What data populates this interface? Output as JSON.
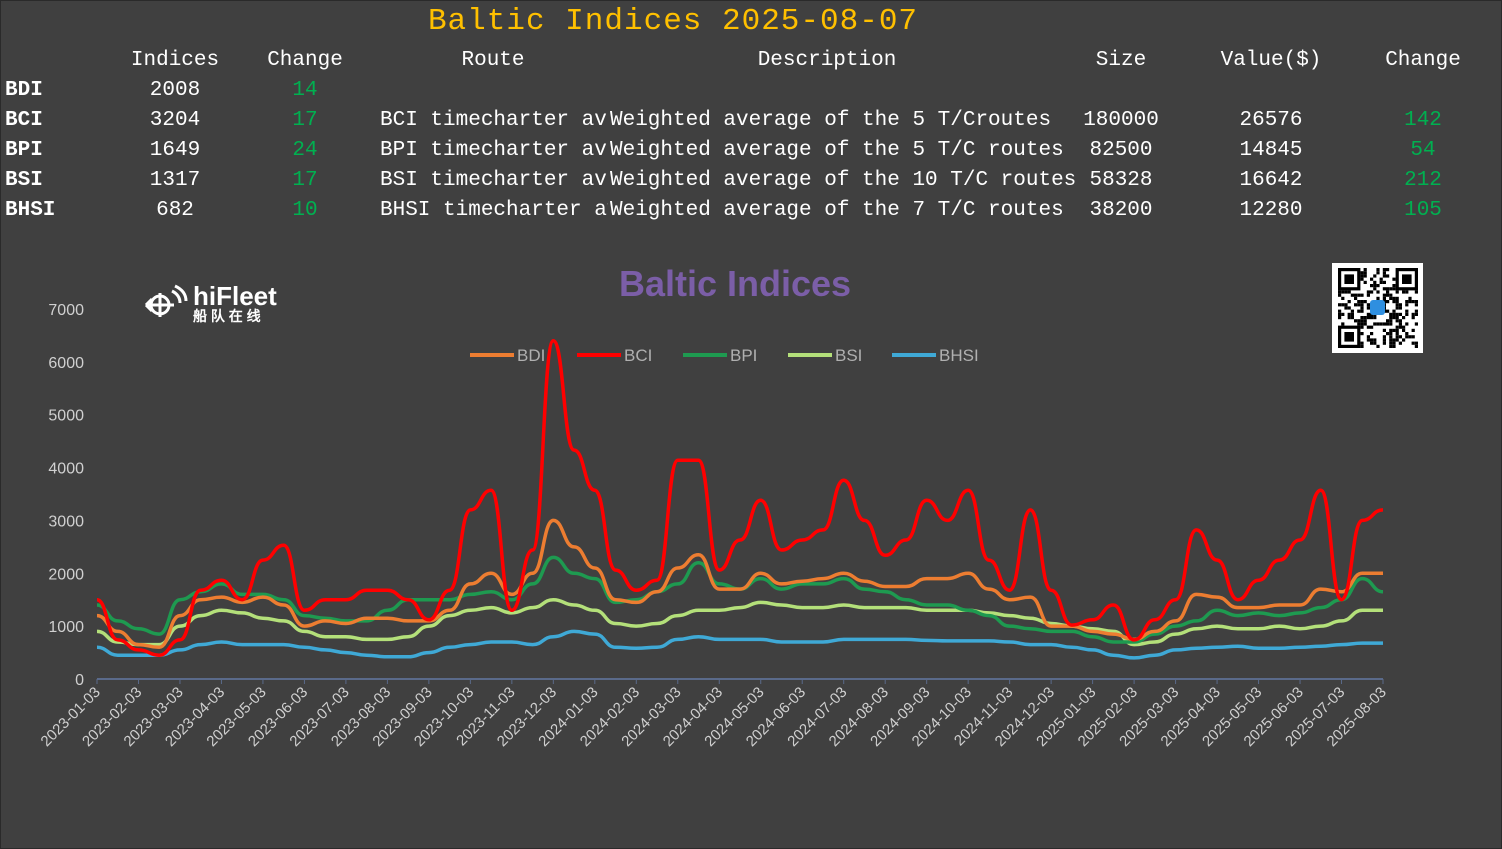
{
  "header": {
    "title": "Baltic Indices 2025-08-07"
  },
  "table": {
    "columns": [
      "Indices",
      "Change",
      "Route",
      "Description",
      "Size",
      "Value($)",
      "Change"
    ],
    "rows": [
      {
        "name": "BDI",
        "index": "2008",
        "change": "14",
        "route": "",
        "description": "",
        "size": "",
        "value": "",
        "value_change": ""
      },
      {
        "name": "BCI",
        "index": "3204",
        "change": "17",
        "route": "BCI timecharter average",
        "description": "Weighted average of the 5 T/Croutes",
        "size": "180000",
        "value": "26576",
        "value_change": "142"
      },
      {
        "name": "BPI",
        "index": "1649",
        "change": "24",
        "route": "BPI timecharter average",
        "description": "Weighted average of the 5 T/C routes",
        "size": "82500",
        "value": "14845",
        "value_change": "54"
      },
      {
        "name": "BSI",
        "index": "1317",
        "change": "17",
        "route": "BSI timecharter average",
        "description": "Weighted average of the 10 T/C routes",
        "size": "58328",
        "value": "16642",
        "value_change": "212"
      },
      {
        "name": "BHSI",
        "index": "682",
        "change": "10",
        "route": "BHSI timecharter average",
        "description": "Weighted average of the 7 T/C routes",
        "size": "38200",
        "value": "12280",
        "value_change": "105"
      }
    ]
  },
  "logo": {
    "brand": "hiFleet",
    "subtitle": "船 队 在 线"
  },
  "colors": {
    "background": "#404040",
    "title": "#ffc000",
    "positive": "#00b050",
    "chart_title": "#7b5ea7"
  },
  "chart_data": {
    "type": "line",
    "title": "Baltic Indices",
    "xlabel": "",
    "ylabel": "",
    "ylim": [
      0,
      7000
    ],
    "yticks": [
      0,
      1000,
      2000,
      3000,
      4000,
      5000,
      6000,
      7000
    ],
    "xticks": [
      "2023-01-03",
      "2023-02-03",
      "2023-03-03",
      "2023-04-03",
      "2023-05-03",
      "2023-06-03",
      "2023-07-03",
      "2023-08-03",
      "2023-09-03",
      "2023-10-03",
      "2023-11-03",
      "2023-12-03",
      "2024-01-03",
      "2024-02-03",
      "2024-03-03",
      "2024-04-03",
      "2024-05-03",
      "2024-06-03",
      "2024-07-03",
      "2024-08-03",
      "2024-09-03",
      "2024-10-03",
      "2024-11-03",
      "2024-12-03",
      "2025-01-03",
      "2025-02-03",
      "2025-03-03",
      "2025-04-03",
      "2025-05-03",
      "2025-06-03",
      "2025-07-03",
      "2025-08-03"
    ],
    "x_note": "values sampled twice per month from 2023-01-03 to 2025-08-03",
    "legend_position": "top-center",
    "grid": false,
    "series": [
      {
        "name": "BDI",
        "color": "#ed7d31",
        "values": [
          1200,
          900,
          650,
          600,
          1200,
          1500,
          1550,
          1450,
          1550,
          1400,
          1000,
          1100,
          1050,
          1150,
          1150,
          1100,
          1100,
          1300,
          1800,
          2000,
          1600,
          2000,
          3000,
          2500,
          2100,
          1500,
          1450,
          1650,
          2100,
          2350,
          1700,
          1700,
          2000,
          1800,
          1850,
          1900,
          2000,
          1850,
          1750,
          1750,
          1900,
          1900,
          2000,
          1700,
          1500,
          1550,
          1000,
          1000,
          900,
          850,
          750,
          900,
          1100,
          1600,
          1550,
          1350,
          1350,
          1400,
          1400,
          1700,
          1650,
          2000,
          2000
        ]
      },
      {
        "name": "BCI",
        "color": "#ff0000",
        "values": [
          1500,
          740,
          550,
          450,
          740,
          1680,
          1870,
          1500,
          2250,
          2530,
          1300,
          1500,
          1500,
          1680,
          1680,
          1500,
          1120,
          1680,
          3200,
          3570,
          1300,
          2440,
          6400,
          4330,
          3570,
          2060,
          1680,
          1870,
          4140,
          4140,
          2060,
          2630,
          3380,
          2440,
          2630,
          2820,
          3760,
          3000,
          2340,
          2630,
          3380,
          3000,
          3570,
          2250,
          1680,
          3200,
          1680,
          1020,
          1120,
          1400,
          740,
          1120,
          1500,
          2820,
          2250,
          1500,
          1870,
          2250,
          2630,
          3570,
          1500,
          3000,
          3200
        ]
      },
      {
        "name": "BPI",
        "color": "#1e9a50",
        "values": [
          1400,
          1100,
          950,
          850,
          1500,
          1650,
          1800,
          1600,
          1600,
          1500,
          1200,
          1150,
          1100,
          1100,
          1300,
          1500,
          1500,
          1500,
          1600,
          1650,
          1500,
          1800,
          2300,
          2000,
          1900,
          1450,
          1500,
          1650,
          1800,
          2200,
          1800,
          1700,
          1900,
          1700,
          1800,
          1800,
          1900,
          1700,
          1650,
          1500,
          1400,
          1400,
          1300,
          1200,
          1000,
          950,
          900,
          900,
          800,
          700,
          700,
          850,
          1000,
          1100,
          1300,
          1200,
          1250,
          1200,
          1250,
          1350,
          1500,
          1900,
          1650
        ]
      },
      {
        "name": "BSI",
        "color": "#b4e07a",
        "values": [
          900,
          700,
          650,
          650,
          1000,
          1200,
          1300,
          1250,
          1150,
          1100,
          900,
          800,
          800,
          750,
          750,
          800,
          1000,
          1200,
          1300,
          1350,
          1250,
          1350,
          1500,
          1400,
          1300,
          1050,
          1000,
          1050,
          1200,
          1300,
          1300,
          1350,
          1450,
          1400,
          1350,
          1350,
          1400,
          1350,
          1350,
          1350,
          1300,
          1300,
          1300,
          1250,
          1200,
          1150,
          1050,
          1000,
          950,
          900,
          650,
          700,
          850,
          950,
          1000,
          950,
          950,
          1000,
          950,
          1000,
          1100,
          1300,
          1300
        ]
      },
      {
        "name": "BHSI",
        "color": "#3fa9d6",
        "values": [
          600,
          450,
          450,
          450,
          550,
          650,
          700,
          650,
          650,
          650,
          600,
          550,
          500,
          450,
          420,
          420,
          500,
          600,
          650,
          700,
          700,
          650,
          800,
          900,
          850,
          600,
          580,
          600,
          750,
          800,
          750,
          750,
          750,
          700,
          700,
          700,
          750,
          750,
          750,
          750,
          730,
          720,
          720,
          720,
          700,
          650,
          650,
          600,
          550,
          450,
          400,
          450,
          550,
          580,
          600,
          620,
          580,
          580,
          600,
          620,
          650,
          680,
          680
        ]
      }
    ]
  }
}
